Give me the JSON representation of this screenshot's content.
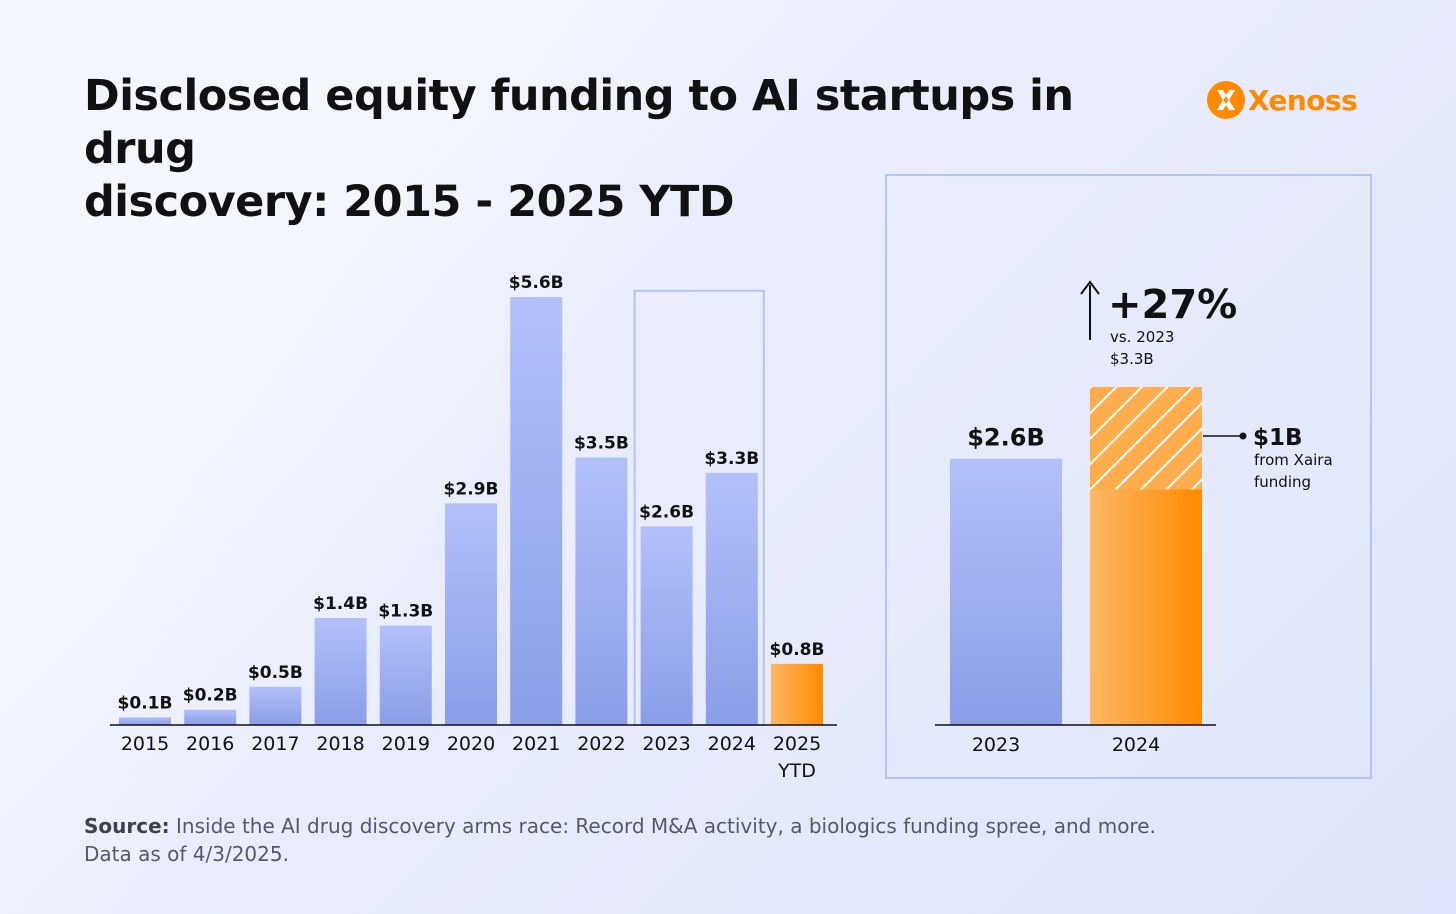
{
  "title": {
    "line1": "Disclosed equity funding to AI startups in drug",
    "line2": "discovery: 2015 - 2025 YTD"
  },
  "logo": {
    "icon": "xenoss-x-icon",
    "text": "Xenoss"
  },
  "colors": {
    "bar_blue_top": "#b3c0fa",
    "bar_blue_bottom": "#8b9de8",
    "bar_orange_top": "#ffb766",
    "bar_orange_bottom": "#ff8a00",
    "highlight_frame": "#b4c2f8"
  },
  "chart_data": [
    {
      "type": "bar",
      "categories": [
        "2015",
        "2016",
        "2017",
        "2018",
        "2019",
        "2020",
        "2021",
        "2022",
        "2023",
        "2024",
        "2025 YTD"
      ],
      "values": [
        0.1,
        0.2,
        0.5,
        1.4,
        1.3,
        2.9,
        5.6,
        3.5,
        2.6,
        3.3,
        0.8
      ],
      "data_labels": [
        "$0.1B",
        "$0.2B",
        "$0.5B",
        "$1.4B",
        "$1.3B",
        "$2.9B",
        "$5.6B",
        "$3.5B",
        "$2.6B",
        "$3.3B",
        "$0.8B"
      ],
      "highlighted_categories": [
        "2023",
        "2024"
      ],
      "accent_category": "2025 YTD",
      "unit": "$B",
      "ylim": [
        0,
        5.6
      ]
    },
    {
      "type": "bar",
      "categories": [
        "2023",
        "2024"
      ],
      "values": [
        2.6,
        3.3
      ],
      "data_labels": [
        "$2.6B",
        ""
      ],
      "stacked_segment": {
        "category": "2024",
        "value": 1.0,
        "label": "$1B",
        "note_line1": "from Xaira",
        "note_line2": "funding"
      },
      "annotation": {
        "arrow": "up-arrow-icon",
        "change": "+27%",
        "line1": "vs. 2023",
        "line2": "$3.3B"
      },
      "unit": "$B",
      "ylim": [
        0,
        3.3
      ]
    }
  ],
  "source": {
    "label": "Source:",
    "text": "Inside the AI drug discovery arms race: Record M&A activity, a biologics funding spree, and more.",
    "line2": "Data as of 4/3/2025."
  }
}
